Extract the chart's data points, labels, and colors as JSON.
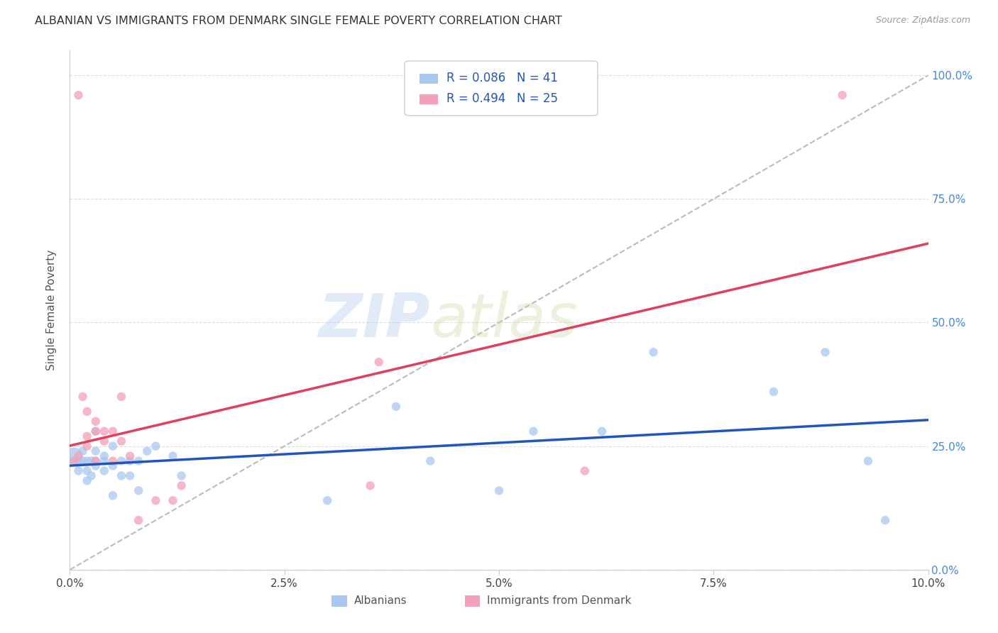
{
  "title": "ALBANIAN VS IMMIGRANTS FROM DENMARK SINGLE FEMALE POVERTY CORRELATION CHART",
  "source": "Source: ZipAtlas.com",
  "ylabel": "Single Female Poverty",
  "ytick_labels": [
    "0.0%",
    "25.0%",
    "50.0%",
    "75.0%",
    "100.0%"
  ],
  "ytick_values": [
    0.0,
    0.25,
    0.5,
    0.75,
    1.0
  ],
  "xtick_labels": [
    "0.0%",
    "2.5%",
    "5.0%",
    "7.5%",
    "10.0%"
  ],
  "xtick_values": [
    0.0,
    0.025,
    0.05,
    0.075,
    0.1
  ],
  "legend_label1": "Albanians",
  "legend_label2": "Immigrants from Denmark",
  "r1": 0.086,
  "n1": 41,
  "r2": 0.494,
  "n2": 25,
  "color_blue": "#A8C8F0",
  "color_pink": "#F4A0B8",
  "color_blue_line": "#2255BB",
  "color_pink_line": "#E04060",
  "color_diag": "#BBBBBB",
  "watermark_zip": "ZIP",
  "watermark_atlas": "atlas",
  "blue_x": [
    0.0005,
    0.001,
    0.001,
    0.0015,
    0.0015,
    0.002,
    0.002,
    0.002,
    0.0025,
    0.0025,
    0.003,
    0.003,
    0.003,
    0.003,
    0.004,
    0.004,
    0.004,
    0.005,
    0.005,
    0.005,
    0.006,
    0.006,
    0.007,
    0.007,
    0.008,
    0.008,
    0.009,
    0.01,
    0.012,
    0.013,
    0.03,
    0.038,
    0.042,
    0.05,
    0.054,
    0.062,
    0.068,
    0.082,
    0.088,
    0.093,
    0.095
  ],
  "blue_y": [
    0.23,
    0.2,
    0.22,
    0.22,
    0.24,
    0.18,
    0.2,
    0.22,
    0.19,
    0.22,
    0.21,
    0.22,
    0.24,
    0.28,
    0.2,
    0.22,
    0.23,
    0.15,
    0.21,
    0.25,
    0.19,
    0.22,
    0.19,
    0.22,
    0.16,
    0.22,
    0.24,
    0.25,
    0.23,
    0.19,
    0.14,
    0.33,
    0.22,
    0.16,
    0.28,
    0.28,
    0.44,
    0.36,
    0.44,
    0.22,
    0.1
  ],
  "blue_sizes": [
    300,
    80,
    80,
    80,
    80,
    80,
    80,
    80,
    80,
    80,
    80,
    80,
    80,
    80,
    80,
    80,
    80,
    80,
    80,
    80,
    80,
    80,
    80,
    80,
    80,
    80,
    80,
    80,
    80,
    80,
    80,
    80,
    80,
    80,
    80,
    80,
    80,
    80,
    80,
    80,
    80
  ],
  "pink_x": [
    0.0005,
    0.001,
    0.001,
    0.0015,
    0.002,
    0.002,
    0.002,
    0.003,
    0.003,
    0.003,
    0.004,
    0.004,
    0.005,
    0.005,
    0.006,
    0.006,
    0.007,
    0.008,
    0.01,
    0.012,
    0.013,
    0.035,
    0.036,
    0.06,
    0.09
  ],
  "pink_y": [
    0.22,
    0.23,
    0.96,
    0.35,
    0.32,
    0.27,
    0.25,
    0.28,
    0.3,
    0.22,
    0.26,
    0.28,
    0.28,
    0.22,
    0.35,
    0.26,
    0.23,
    0.1,
    0.14,
    0.14,
    0.17,
    0.17,
    0.42,
    0.2,
    0.96
  ],
  "pink_sizes": [
    80,
    80,
    80,
    80,
    80,
    80,
    80,
    80,
    80,
    80,
    80,
    80,
    80,
    80,
    80,
    80,
    80,
    80,
    80,
    80,
    80,
    80,
    80,
    80,
    80
  ],
  "xlim": [
    0.0,
    0.1
  ],
  "ylim": [
    0.0,
    1.05
  ],
  "background_color": "#FFFFFF",
  "grid_color": "#DDDDDD"
}
